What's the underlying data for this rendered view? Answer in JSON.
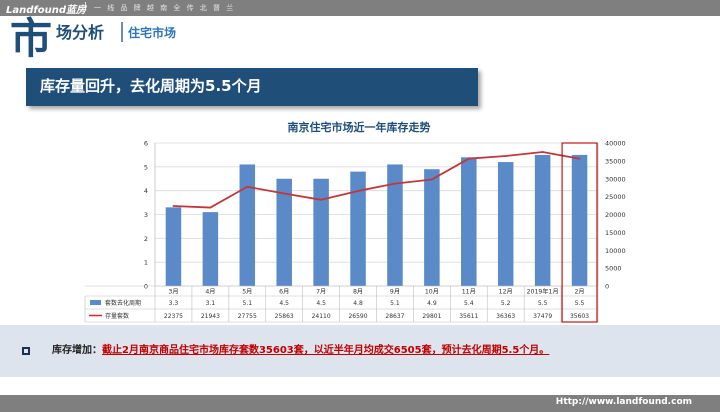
{
  "topbar": {
    "brand": "Landfound蓝房",
    "separator": "|",
    "slogan": "一 线 品 牌 越 南 全 传 北 督 兰"
  },
  "header": {
    "big_char": "市",
    "subtitle": "场分析",
    "section": "住宅市场"
  },
  "headline": "库存量回升，去化周期为5.5个月",
  "chart_data": {
    "type": "bar+line",
    "title": "南京住宅市场近一年库存走势",
    "categories": [
      "3月",
      "4月",
      "5月",
      "6月",
      "7月",
      "8月",
      "9月",
      "10月",
      "11月",
      "12月",
      "2019年1月",
      "2月"
    ],
    "series": [
      {
        "name": "套数去化周期",
        "type": "bar",
        "axis": "left",
        "values": [
          3.3,
          3.1,
          5.1,
          4.5,
          4.5,
          4.8,
          5.1,
          4.9,
          5.4,
          5.2,
          5.5,
          5.5
        ]
      },
      {
        "name": "存量套数",
        "type": "line",
        "axis": "right",
        "values": [
          22375,
          21943,
          27755,
          25863,
          24110,
          26590,
          28637,
          29801,
          35611,
          36363,
          37479,
          35603
        ]
      }
    ],
    "y_left": {
      "min": 0,
      "max": 6,
      "ticks": [
        "0",
        "1",
        "2",
        "3",
        "4",
        "5",
        "6"
      ]
    },
    "y_right": {
      "min": 0,
      "max": 40000,
      "ticks": [
        "0",
        "5000",
        "10000",
        "15000",
        "20000",
        "25000",
        "30000",
        "35000",
        "40000"
      ]
    },
    "grid": true,
    "legend": "data-table",
    "highlight_category": "2月",
    "colors": {
      "bar": "#5b8ac8",
      "line": "#c0383c",
      "highlight": "#c00000"
    }
  },
  "note": {
    "label": "库存增加：",
    "body": "截止2月南京商品住宅市场库存套数35603套，以近半年月均成交6505套，预计去化周期5.5个月。"
  },
  "footer": {
    "url": "Http://www.landfound.com"
  }
}
